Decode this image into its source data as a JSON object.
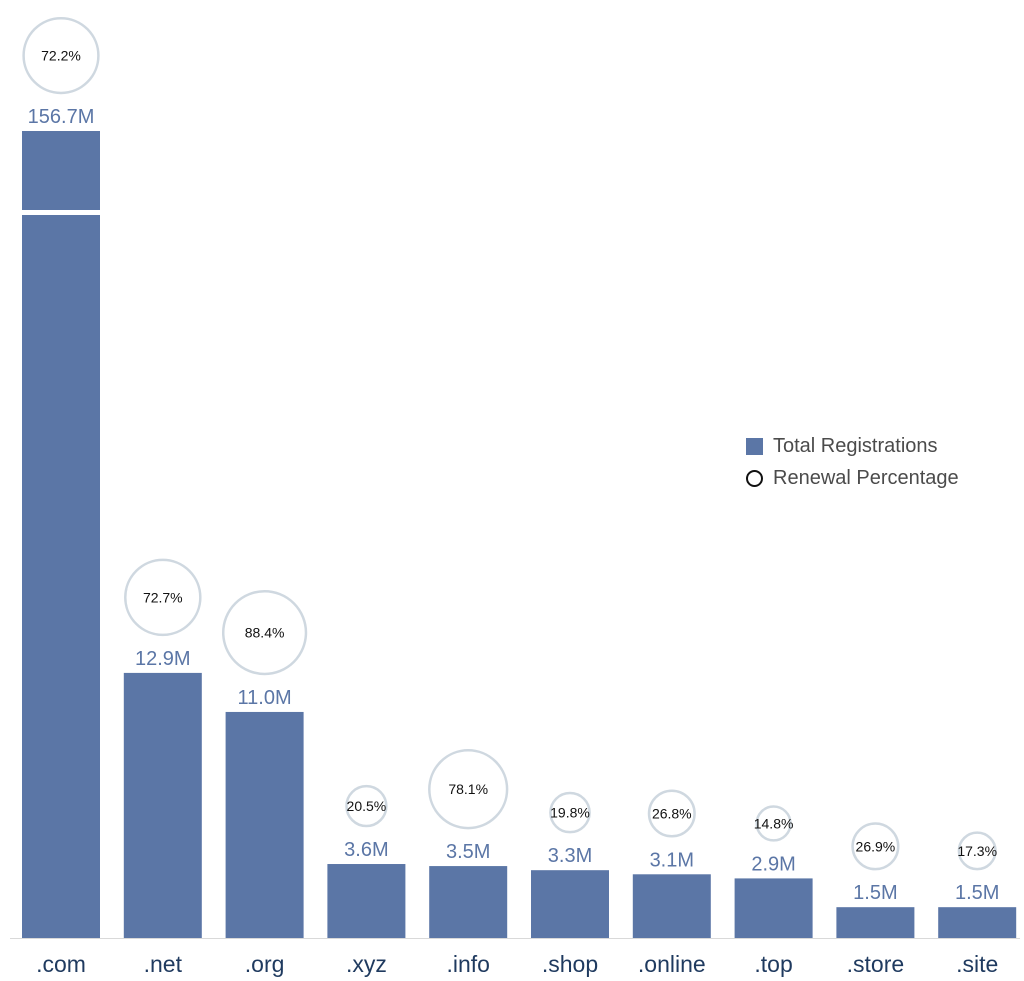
{
  "chart_data": {
    "type": "bar",
    "categories": [
      ".com",
      ".net",
      ".org",
      ".xyz",
      ".info",
      ".shop",
      ".online",
      ".top",
      ".store",
      ".site"
    ],
    "series": [
      {
        "name": "Total Registrations",
        "values": [
          156.7,
          12.9,
          11.0,
          3.6,
          3.5,
          3.3,
          3.1,
          2.9,
          1.5,
          1.5
        ],
        "labels": [
          "156.7M",
          "12.9M",
          "11.0M",
          "3.6M",
          "3.5M",
          "3.3M",
          "3.1M",
          "2.9M",
          "1.5M",
          "1.5M"
        ]
      },
      {
        "name": "Renewal Percentage",
        "values": [
          72.2,
          72.7,
          88.4,
          20.5,
          78.1,
          19.8,
          26.8,
          14.8,
          26.9,
          17.3
        ],
        "labels": [
          "72.2%",
          "72.7%",
          "88.4%",
          "20.5%",
          "78.1%",
          "19.8%",
          "26.8%",
          "14.8%",
          "26.9%",
          "17.3%"
        ]
      }
    ],
    "axis_break": true,
    "grid": false,
    "legend_position": "right",
    "colors": {
      "bar": "#5b76a6",
      "bar_label": "#5b76a6",
      "circle_stroke": "#cfd8e0",
      "circle_text": "#111111",
      "category_text": "#1f3a5f",
      "legend_text": "#4b4b4b"
    }
  },
  "legend": {
    "items": [
      {
        "label": "Total Registrations",
        "marker": "square"
      },
      {
        "label": "Renewal Percentage",
        "marker": "circle"
      }
    ]
  }
}
